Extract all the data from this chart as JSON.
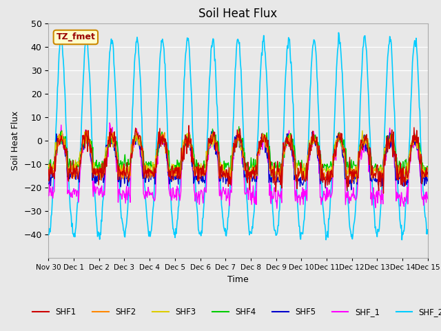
{
  "title": "Soil Heat Flux",
  "xlabel": "Time",
  "ylabel": "Soil Heat Flux",
  "ylim": [
    -50,
    50
  ],
  "yticks": [
    -40,
    -30,
    -20,
    -10,
    0,
    10,
    20,
    30,
    40,
    50
  ],
  "xtick_labels": [
    "Nov 30",
    "Dec 1",
    "Dec 2",
    "Dec 3",
    "Dec 4",
    "Dec 5",
    "Dec 6",
    "Dec 7",
    "Dec 8",
    "Dec 9",
    "Dec 10",
    "Dec 11",
    "Dec 12",
    "Dec 13",
    "Dec 14",
    "Dec 15"
  ],
  "series_colors": {
    "SHF1": "#cc0000",
    "SHF2": "#ff8800",
    "SHF3": "#ddcc00",
    "SHF4": "#00cc00",
    "SHF5": "#0000cc",
    "SHF_1": "#ff00ff",
    "SHF_2": "#00ccff"
  },
  "legend_label": "TZ_fmet",
  "bg_color": "#e8e8e8",
  "n_days": 15,
  "hours_per_day": 24
}
